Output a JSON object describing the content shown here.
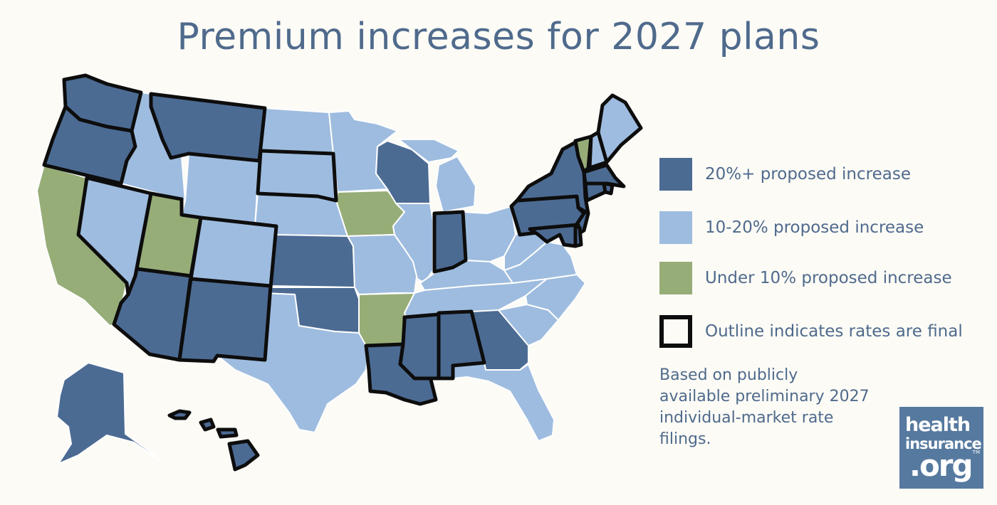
{
  "title": "Premium increases for 2027 plans",
  "colors": {
    "high": "#4c6b93",
    "mid": "#9ebcdf",
    "low": "#97ad78",
    "outline": "#0d0d0d",
    "background": "#fcfbf6",
    "text": "#4f6a8c",
    "logo_bg": "#56799f"
  },
  "legend": [
    {
      "key": "high",
      "label": "20%+ proposed increase"
    },
    {
      "key": "mid",
      "label": "10-20% proposed increase"
    },
    {
      "key": "low",
      "label": "Under 10% proposed increase"
    },
    {
      "key": "outline",
      "label": "Outline indicates rates are final"
    }
  ],
  "note": "Based on publicly available preliminary 2027 individual-market rate filings.",
  "logo": {
    "line1": "health",
    "line2": "insurance",
    "line3": ".org",
    "mark": "TM"
  },
  "states": {
    "AK": {
      "category": "high",
      "final": false
    },
    "AL": {
      "category": "high",
      "final": true
    },
    "AR": {
      "category": "low",
      "final": false
    },
    "AZ": {
      "category": "high",
      "final": true
    },
    "CA": {
      "category": "low",
      "final": false
    },
    "CO": {
      "category": "mid",
      "final": true
    },
    "CT": {
      "category": "high",
      "final": true
    },
    "DE": {
      "category": "high",
      "final": true
    },
    "FL": {
      "category": "mid",
      "final": false
    },
    "GA": {
      "category": "high",
      "final": false
    },
    "HI": {
      "category": "high",
      "final": true
    },
    "IA": {
      "category": "low",
      "final": false
    },
    "ID": {
      "category": "mid",
      "final": false
    },
    "IL": {
      "category": "mid",
      "final": false
    },
    "IN": {
      "category": "high",
      "final": true
    },
    "KS": {
      "category": "high",
      "final": false
    },
    "KY": {
      "category": "mid",
      "final": false
    },
    "LA": {
      "category": "high",
      "final": true
    },
    "MA": {
      "category": "high",
      "final": true
    },
    "MD": {
      "category": "high",
      "final": true
    },
    "ME": {
      "category": "mid",
      "final": true
    },
    "MI": {
      "category": "mid",
      "final": false
    },
    "MN": {
      "category": "mid",
      "final": false
    },
    "MO": {
      "category": "mid",
      "final": false
    },
    "MS": {
      "category": "high",
      "final": true
    },
    "MT": {
      "category": "high",
      "final": true
    },
    "NC": {
      "category": "mid",
      "final": false
    },
    "ND": {
      "category": "mid",
      "final": false
    },
    "NE": {
      "category": "mid",
      "final": false
    },
    "NH": {
      "category": "mid",
      "final": true
    },
    "NJ": {
      "category": "high",
      "final": true
    },
    "NM": {
      "category": "high",
      "final": true
    },
    "NV": {
      "category": "mid",
      "final": true
    },
    "NY": {
      "category": "high",
      "final": true
    },
    "OH": {
      "category": "mid",
      "final": false
    },
    "OK": {
      "category": "high",
      "final": false
    },
    "OR": {
      "category": "high",
      "final": true
    },
    "PA": {
      "category": "high",
      "final": true
    },
    "RI": {
      "category": "high",
      "final": true
    },
    "SC": {
      "category": "mid",
      "final": false
    },
    "SD": {
      "category": "mid",
      "final": true
    },
    "TN": {
      "category": "mid",
      "final": false
    },
    "TX": {
      "category": "mid",
      "final": false
    },
    "UT": {
      "category": "low",
      "final": true
    },
    "VA": {
      "category": "mid",
      "final": false
    },
    "VT": {
      "category": "low",
      "final": true
    },
    "WA": {
      "category": "high",
      "final": true
    },
    "WI": {
      "category": "high",
      "final": false
    },
    "WV": {
      "category": "mid",
      "final": false
    },
    "WY": {
      "category": "mid",
      "final": false
    }
  }
}
